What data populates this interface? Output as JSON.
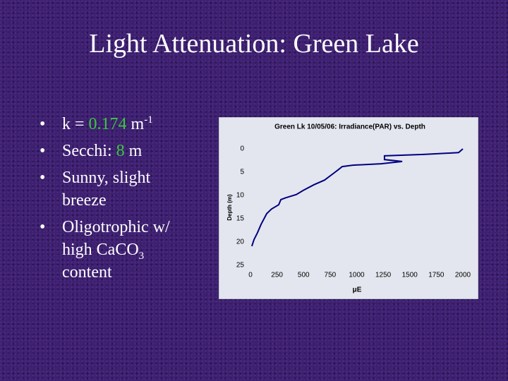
{
  "title": "Light Attenuation: Green Lake",
  "bullets": [
    {
      "parts": [
        "k = ",
        "0.174",
        " m",
        "-1"
      ]
    },
    {
      "parts": [
        "Secchi: ",
        "8",
        " m"
      ]
    },
    {
      "parts": [
        "Sunny, slight breeze"
      ]
    },
    {
      "parts": [
        "Oligotrophic w/ high CaCO",
        "3",
        " content"
      ]
    }
  ],
  "chart_data": {
    "type": "line",
    "title": "Green Lk 10/05/06: Irradiance(PAR) vs. Depth",
    "x_label": "μE",
    "y_label": "Depth (m)",
    "xlim": [
      0,
      2000
    ],
    "xticks": [
      0,
      250,
      500,
      750,
      1000,
      1250,
      1500,
      1750,
      2000
    ],
    "ylim": [
      0,
      25
    ],
    "yticks": [
      0,
      5,
      10,
      15,
      20,
      25
    ],
    "invert_y": true,
    "series": [
      {
        "color": "#000080",
        "x": [
          13,
          33,
          66,
          100,
          153,
          199,
          266,
          286,
          332,
          432,
          498,
          598,
          698,
          797,
          831,
          864,
          964,
          1229,
          1429,
          1262,
          1262,
          1628,
          1960,
          2000
        ],
        "values": [
          20.9,
          19.5,
          18,
          16.2,
          13.9,
          12.9,
          12,
          10.9,
          10.5,
          9.8,
          8.9,
          7.7,
          6.7,
          5.0,
          4.4,
          3.8,
          3.5,
          3.2,
          2.7,
          2.3,
          1.5,
          1.2,
          0.8,
          0
        ]
      }
    ]
  }
}
